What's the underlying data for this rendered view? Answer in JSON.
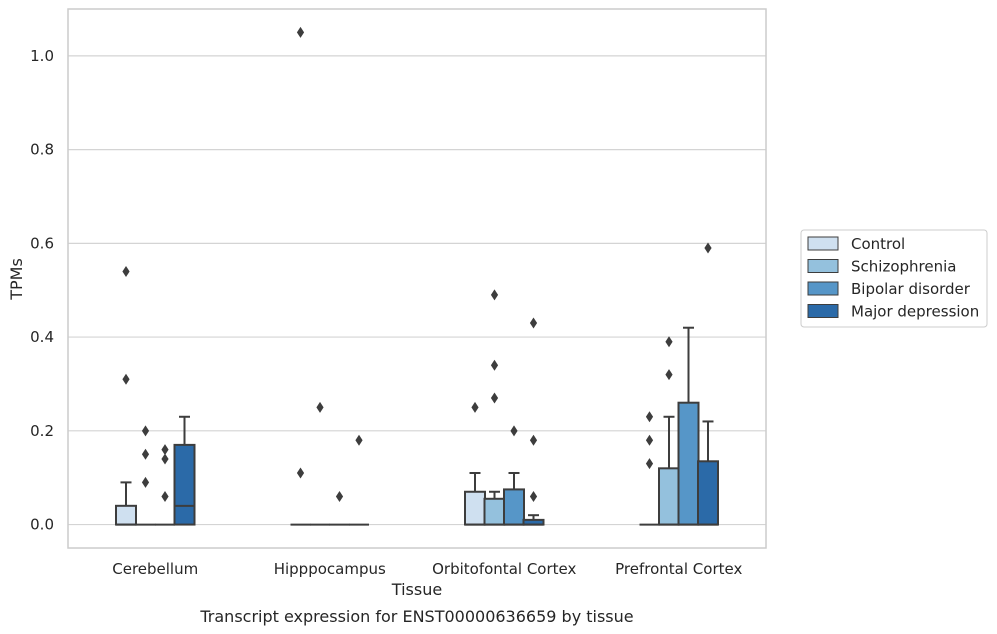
{
  "caption": "Transcript expression for ENST00000636659 by tissue",
  "chart_data": {
    "type": "box",
    "xlabel": "Tissue",
    "ylabel": "TPMs",
    "ylim": [
      -0.05,
      1.1
    ],
    "yticks": [
      0.0,
      0.2,
      0.4,
      0.6,
      0.8,
      1.0
    ],
    "ytick_labels": [
      "0.0",
      "0.2",
      "0.4",
      "0.6",
      "0.8",
      "1.0"
    ],
    "grid": "horizontal",
    "legend_position": "right",
    "categories": [
      "Cerebellum",
      "Hipppocampus",
      "Orbitofontal Cortex",
      "Prefrontal Cortex"
    ],
    "series": [
      {
        "name": "Control",
        "color": "#cfe0f0",
        "boxes": [
          {
            "q1": 0.0,
            "median": 0.0,
            "q3": 0.04,
            "whisker_low": 0.0,
            "whisker_high": 0.09,
            "outliers": [
              0.31,
              0.54
            ]
          },
          {
            "q1": 0.0,
            "median": 0.0,
            "q3": 0.0,
            "whisker_low": 0.0,
            "whisker_high": 0.0,
            "outliers": [
              0.11,
              1.05
            ]
          },
          {
            "q1": 0.0,
            "median": 0.0,
            "q3": 0.07,
            "whisker_low": 0.0,
            "whisker_high": 0.11,
            "outliers": [
              0.25
            ]
          },
          {
            "q1": 0.0,
            "median": 0.0,
            "q3": 0.0,
            "whisker_low": 0.0,
            "whisker_high": 0.0,
            "outliers": [
              0.13,
              0.18,
              0.23
            ]
          }
        ]
      },
      {
        "name": "Schizophrenia",
        "color": "#94c1dd",
        "boxes": [
          {
            "q1": 0.0,
            "median": 0.0,
            "q3": 0.0,
            "whisker_low": 0.0,
            "whisker_high": 0.0,
            "outliers": [
              0.09,
              0.15,
              0.2
            ]
          },
          {
            "q1": 0.0,
            "median": 0.0,
            "q3": 0.0,
            "whisker_low": 0.0,
            "whisker_high": 0.0,
            "outliers": [
              0.25
            ]
          },
          {
            "q1": 0.0,
            "median": 0.0,
            "q3": 0.055,
            "whisker_low": 0.0,
            "whisker_high": 0.07,
            "outliers": [
              0.27,
              0.34,
              0.49
            ]
          },
          {
            "q1": 0.0,
            "median": 0.0,
            "q3": 0.12,
            "whisker_low": 0.0,
            "whisker_high": 0.23,
            "outliers": [
              0.32,
              0.39
            ]
          }
        ]
      },
      {
        "name": "Bipolar disorder",
        "color": "#5696c8",
        "boxes": [
          {
            "q1": 0.0,
            "median": 0.0,
            "q3": 0.0,
            "whisker_low": 0.0,
            "whisker_high": 0.0,
            "outliers": [
              0.06,
              0.14,
              0.16
            ]
          },
          {
            "q1": 0.0,
            "median": 0.0,
            "q3": 0.0,
            "whisker_low": 0.0,
            "whisker_high": 0.0,
            "outliers": [
              0.06
            ]
          },
          {
            "q1": 0.0,
            "median": 0.0,
            "q3": 0.075,
            "whisker_low": 0.0,
            "whisker_high": 0.11,
            "outliers": [
              0.2
            ]
          },
          {
            "q1": 0.0,
            "median": 0.0,
            "q3": 0.26,
            "whisker_low": 0.0,
            "whisker_high": 0.42,
            "outliers": []
          }
        ]
      },
      {
        "name": "Major depression",
        "color": "#2b6aa8",
        "boxes": [
          {
            "q1": 0.0,
            "median": 0.04,
            "q3": 0.17,
            "whisker_low": 0.0,
            "whisker_high": 0.23,
            "outliers": []
          },
          {
            "q1": 0.0,
            "median": 0.0,
            "q3": 0.0,
            "whisker_low": 0.0,
            "whisker_high": 0.0,
            "outliers": [
              0.18
            ]
          },
          {
            "q1": 0.0,
            "median": 0.0,
            "q3": 0.01,
            "whisker_low": 0.0,
            "whisker_high": 0.02,
            "outliers": [
              0.06,
              0.18,
              0.43
            ]
          },
          {
            "q1": 0.0,
            "median": 0.0,
            "q3": 0.135,
            "whisker_low": 0.0,
            "whisker_high": 0.22,
            "outliers": [
              0.59
            ]
          }
        ]
      }
    ]
  }
}
